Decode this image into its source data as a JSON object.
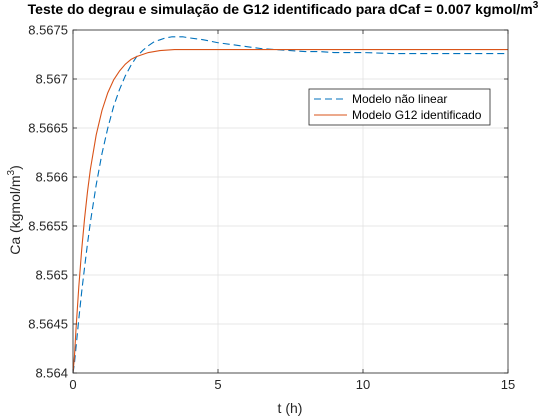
{
  "chart_data": {
    "type": "line",
    "title": "Teste do degrau e simulação de G12 identificado para dCaf = 0.007 kgmol/m",
    "title_superscript": "3",
    "xlabel": "t (h)",
    "ylabel": "Ca (kgmol/m",
    "ylabel_superscript": "3",
    "ylabel_suffix": ")",
    "xlim": [
      0,
      15
    ],
    "ylim": [
      8.564,
      8.5675
    ],
    "xticks": [
      0,
      5,
      10,
      15
    ],
    "xtick_labels": [
      "0",
      "5",
      "10",
      "15"
    ],
    "yticks": [
      8.564,
      8.5645,
      8.565,
      8.5655,
      8.566,
      8.5665,
      8.567,
      8.5675
    ],
    "ytick_labels": [
      "8.564",
      "8.5645",
      "8.565",
      "8.5655",
      "8.566",
      "8.5665",
      "8.567",
      "8.5675"
    ],
    "grid": true,
    "legend_position": "right, upper-middle",
    "series": [
      {
        "name": "Modelo não linear",
        "color": "#0072BD",
        "style": "dashed",
        "x": [
          0,
          0.05,
          0.1,
          0.2,
          0.3,
          0.4,
          0.5,
          0.6,
          0.8,
          1.0,
          1.2,
          1.4,
          1.6,
          1.8,
          2.0,
          2.2,
          2.4,
          2.6,
          2.8,
          3.0,
          3.2,
          3.4,
          3.6,
          3.8,
          4.0,
          4.5,
          5.0,
          5.5,
          6.0,
          6.5,
          7.0,
          7.5,
          8.0,
          8.5,
          9.0,
          10.0,
          11.0,
          12.0,
          13.0,
          14.0,
          15.0
        ],
        "y": [
          8.564,
          8.5641,
          8.56425,
          8.56455,
          8.56483,
          8.56508,
          8.56532,
          8.56554,
          8.56592,
          8.56624,
          8.5665,
          8.56672,
          8.56689,
          8.56703,
          8.56714,
          8.56723,
          8.56729,
          8.56734,
          8.56738,
          8.5674,
          8.56742,
          8.56743,
          8.56743,
          8.56743,
          8.56742,
          8.5674,
          8.56737,
          8.56735,
          8.56733,
          8.56731,
          8.5673,
          8.56729,
          8.56728,
          8.56728,
          8.56727,
          8.56727,
          8.56726,
          8.56726,
          8.56726,
          8.56726,
          8.56726
        ]
      },
      {
        "name": "Modelo G12 identificado",
        "color": "#D95319",
        "style": "solid",
        "x": [
          0,
          0.05,
          0.1,
          0.2,
          0.3,
          0.4,
          0.5,
          0.6,
          0.8,
          1.0,
          1.2,
          1.4,
          1.6,
          1.8,
          2.0,
          2.2,
          2.4,
          2.6,
          2.8,
          3.0,
          3.5,
          4.0,
          5.0,
          6.0,
          7.0,
          8.0,
          9.0,
          10.0,
          11.0,
          12.0,
          13.0,
          14.0,
          15.0
        ],
        "y": [
          8.564,
          8.56417,
          8.56443,
          8.56488,
          8.56526,
          8.56558,
          8.56585,
          8.56608,
          8.56643,
          8.56668,
          8.56686,
          8.56699,
          8.56708,
          8.56715,
          8.5672,
          8.56723,
          8.56725,
          8.56727,
          8.56728,
          8.56729,
          8.5673,
          8.5673,
          8.5673,
          8.5673,
          8.5673,
          8.5673,
          8.5673,
          8.5673,
          8.5673,
          8.5673,
          8.5673,
          8.5673,
          8.5673
        ]
      }
    ]
  }
}
